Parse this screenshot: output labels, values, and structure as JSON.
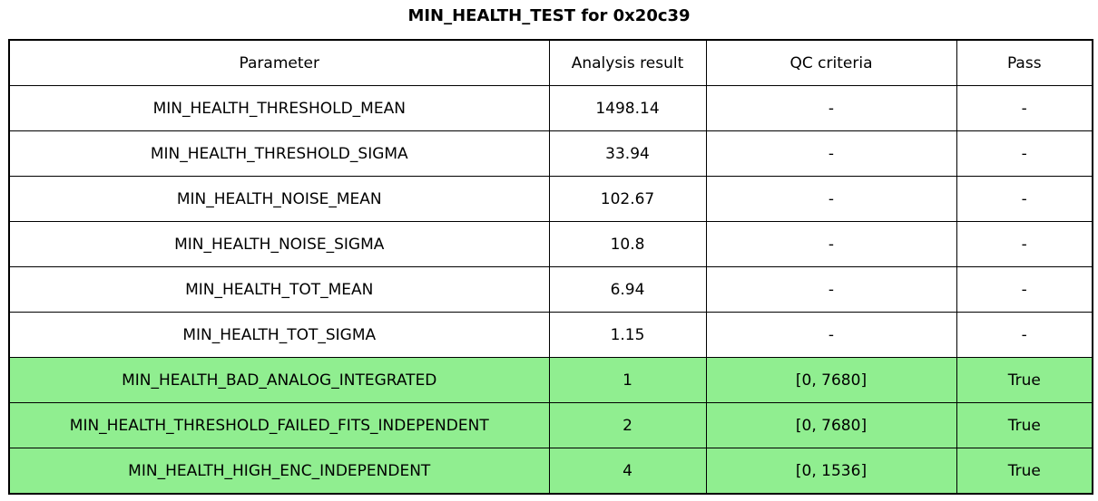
{
  "colors": {
    "page_background": "#FFFFFF",
    "border": "#000000",
    "text": "#000000",
    "highlight_green": "#90EE90"
  },
  "chart_data": {
    "type": "table",
    "title": "MIN_HEALTH_TEST for 0x20c39",
    "columns": [
      "Parameter",
      "Analysis result",
      "QC criteria",
      "Pass"
    ],
    "rows": [
      {
        "parameter": "MIN_HEALTH_THRESHOLD_MEAN",
        "analysis_result": 1498.14,
        "qc_criteria": "-",
        "pass": "-",
        "highlighted": false
      },
      {
        "parameter": "MIN_HEALTH_THRESHOLD_SIGMA",
        "analysis_result": 33.94,
        "qc_criteria": "-",
        "pass": "-",
        "highlighted": false
      },
      {
        "parameter": "MIN_HEALTH_NOISE_MEAN",
        "analysis_result": 102.67,
        "qc_criteria": "-",
        "pass": "-",
        "highlighted": false
      },
      {
        "parameter": "MIN_HEALTH_NOISE_SIGMA",
        "analysis_result": 10.8,
        "qc_criteria": "-",
        "pass": "-",
        "highlighted": false
      },
      {
        "parameter": "MIN_HEALTH_TOT_MEAN",
        "analysis_result": 6.94,
        "qc_criteria": "-",
        "pass": "-",
        "highlighted": false
      },
      {
        "parameter": "MIN_HEALTH_TOT_SIGMA",
        "analysis_result": 1.15,
        "qc_criteria": "-",
        "pass": "-",
        "highlighted": false
      },
      {
        "parameter": "MIN_HEALTH_BAD_ANALOG_INTEGRATED",
        "analysis_result": 1,
        "qc_criteria": "[0, 7680]",
        "pass": "True",
        "highlighted": true
      },
      {
        "parameter": "MIN_HEALTH_THRESHOLD_FAILED_FITS_INDEPENDENT",
        "analysis_result": 2,
        "qc_criteria": "[0, 7680]",
        "pass": "True",
        "highlighted": true
      },
      {
        "parameter": "MIN_HEALTH_HIGH_ENC_INDEPENDENT",
        "analysis_result": 4,
        "qc_criteria": "[0, 1536]",
        "pass": "True",
        "highlighted": true
      }
    ],
    "layout": {
      "highlighted_rows_note": "rows with pass=True have light green background",
      "grid": "full black cell borders"
    }
  }
}
